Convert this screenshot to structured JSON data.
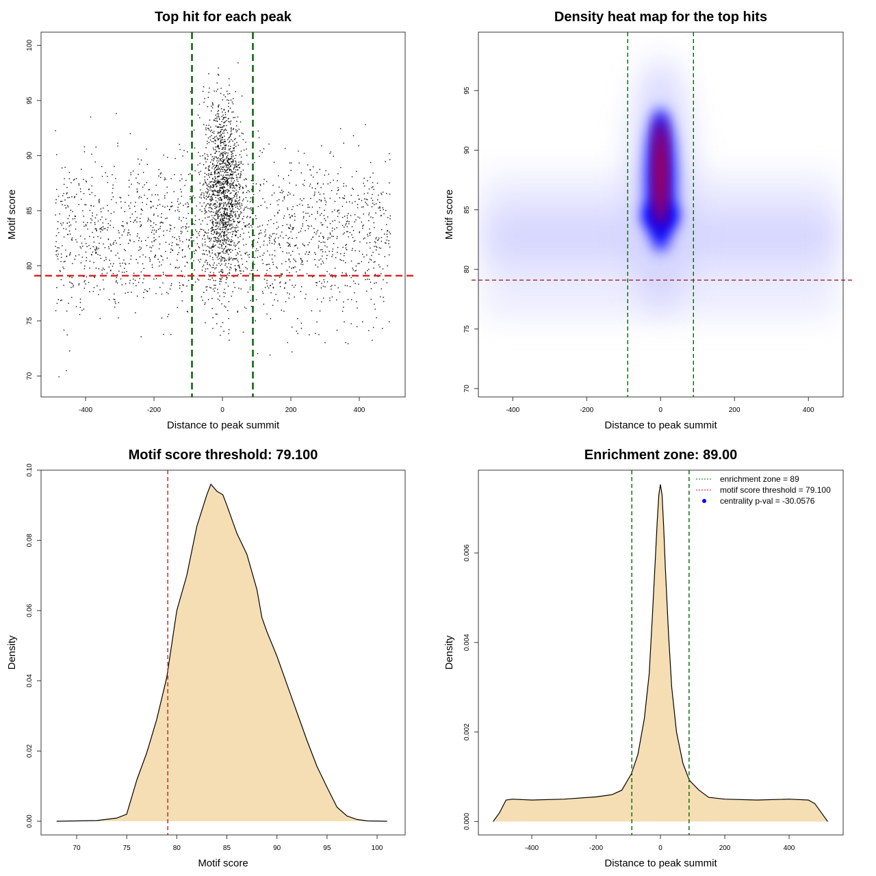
{
  "chart_data": [
    {
      "id": "scatter",
      "type": "scatter",
      "title": "Top hit for each peak",
      "xlabel": "Distance to peak summit",
      "ylabel": "Motif score",
      "xlim": [
        -530,
        534
      ],
      "ylim": [
        68.1,
        101.2
      ],
      "xticks": [
        -400,
        -200,
        0,
        200,
        400
      ],
      "yticks": [
        70,
        75,
        80,
        85,
        90,
        95,
        100
      ],
      "point_color": "#000000",
      "distribution": {
        "background": {
          "x_range": [
            -490,
            490
          ],
          "y_mean": 82.5,
          "y_sd": 3.6,
          "n": 1800
        },
        "central": {
          "x_mean": 0,
          "x_sd": 28,
          "y_mean": 87,
          "y_sd": 4.2,
          "n": 1400
        }
      },
      "vlines": {
        "values": [
          -89,
          89
        ],
        "color": "#006400"
      },
      "hlines": {
        "values": [
          79.1
        ],
        "color": "#dd2222"
      }
    },
    {
      "id": "heatmap",
      "type": "heatmap",
      "title": "Density heat map for the top hits",
      "xlabel": "Distance to peak summit",
      "ylabel": "Motif score",
      "xlim": [
        -493,
        494
      ],
      "ylim": [
        69.3,
        99.9
      ],
      "xticks": [
        -400,
        -200,
        0,
        200,
        400
      ],
      "yticks": [
        70,
        75,
        80,
        85,
        90,
        95
      ],
      "colors": [
        "#ffffff",
        "#0000ff",
        "#ff0000"
      ],
      "vlines": {
        "values": [
          -89,
          89
        ],
        "color": "#006400"
      },
      "hlines": {
        "values": [
          79.1
        ],
        "color": "#a02030"
      }
    },
    {
      "id": "score-density",
      "type": "area",
      "title": "Motif score threshold: 79.100",
      "xlabel": "Motif score",
      "ylabel": "Density",
      "xlim": [
        66.45,
        102.8
      ],
      "ylim": [
        -0.0039,
        0.1
      ],
      "xticks": [
        70,
        75,
        80,
        85,
        90,
        95,
        100
      ],
      "yticks": [
        0.0,
        0.02,
        0.04,
        0.06,
        0.08,
        0.1
      ],
      "ytick_labels": [
        "0.00",
        "0.02",
        "0.04",
        "0.06",
        "0.08",
        "0.10"
      ],
      "fill": "#f5deb3",
      "x": [
        68,
        72,
        74,
        75,
        76,
        77,
        78,
        79,
        80,
        81,
        82,
        83,
        83.4,
        84,
        84.6,
        85,
        85.5,
        86,
        87,
        88,
        88.5,
        89,
        90,
        91,
        92,
        93,
        94,
        95,
        96,
        97,
        98,
        99,
        101
      ],
      "y": [
        0,
        0.0002,
        0.0009,
        0.002,
        0.0117,
        0.0195,
        0.029,
        0.041,
        0.06,
        0.07,
        0.084,
        0.093,
        0.096,
        0.094,
        0.093,
        0.09,
        0.086,
        0.082,
        0.076,
        0.066,
        0.058,
        0.054,
        0.047,
        0.039,
        0.031,
        0.023,
        0.0156,
        0.0097,
        0.004,
        0.0015,
        0.0005,
        0.0001,
        0
      ],
      "vlines": {
        "values": [
          79.1
        ],
        "color": "#b22222"
      }
    },
    {
      "id": "distance-density",
      "type": "area",
      "title": "Enrichment zone: 89.00",
      "xlabel": "Distance to peak summit",
      "ylabel": "Density",
      "xlim": [
        -566,
        568
      ],
      "ylim": [
        -0.0003,
        0.00785
      ],
      "xticks": [
        -400,
        -200,
        0,
        200,
        400
      ],
      "yticks": [
        0.0,
        0.002,
        0.004,
        0.006
      ],
      "ytick_labels": [
        "0.000",
        "0.002",
        "0.004",
        "0.006"
      ],
      "fill": "#f5deb3",
      "x": [
        -520,
        -500,
        -480,
        -460,
        -400,
        -300,
        -200,
        -150,
        -120,
        -90,
        -70,
        -50,
        -35,
        -25,
        -15,
        -10,
        -5,
        0,
        5,
        10,
        15,
        25,
        35,
        50,
        70,
        90,
        120,
        150,
        200,
        300,
        400,
        460,
        480,
        500,
        520
      ],
      "y": [
        0,
        0.0002,
        0.00048,
        0.0005,
        0.00048,
        0.0005,
        0.00055,
        0.0006,
        0.0007,
        0.00107,
        0.0015,
        0.0023,
        0.0033,
        0.0046,
        0.006,
        0.0067,
        0.0073,
        0.00753,
        0.0073,
        0.0066,
        0.0057,
        0.0042,
        0.003,
        0.002,
        0.0013,
        0.00092,
        0.0007,
        0.00054,
        0.0005,
        0.00048,
        0.0005,
        0.00048,
        0.0004,
        0.0002,
        0
      ],
      "vlines": {
        "values": [
          -89,
          89
        ],
        "color": "#006400"
      },
      "legend": {
        "position": "top-right",
        "entries": [
          {
            "label": "enrichment zone = 89",
            "color": "#006400",
            "style": "dotted-line"
          },
          {
            "label": "motif score threshold = 79.100",
            "color": "#ff0000",
            "style": "dotted-line"
          },
          {
            "label": "centrality p-val = -30.0576",
            "color": "#0000ff",
            "style": "point"
          }
        ]
      }
    }
  ]
}
